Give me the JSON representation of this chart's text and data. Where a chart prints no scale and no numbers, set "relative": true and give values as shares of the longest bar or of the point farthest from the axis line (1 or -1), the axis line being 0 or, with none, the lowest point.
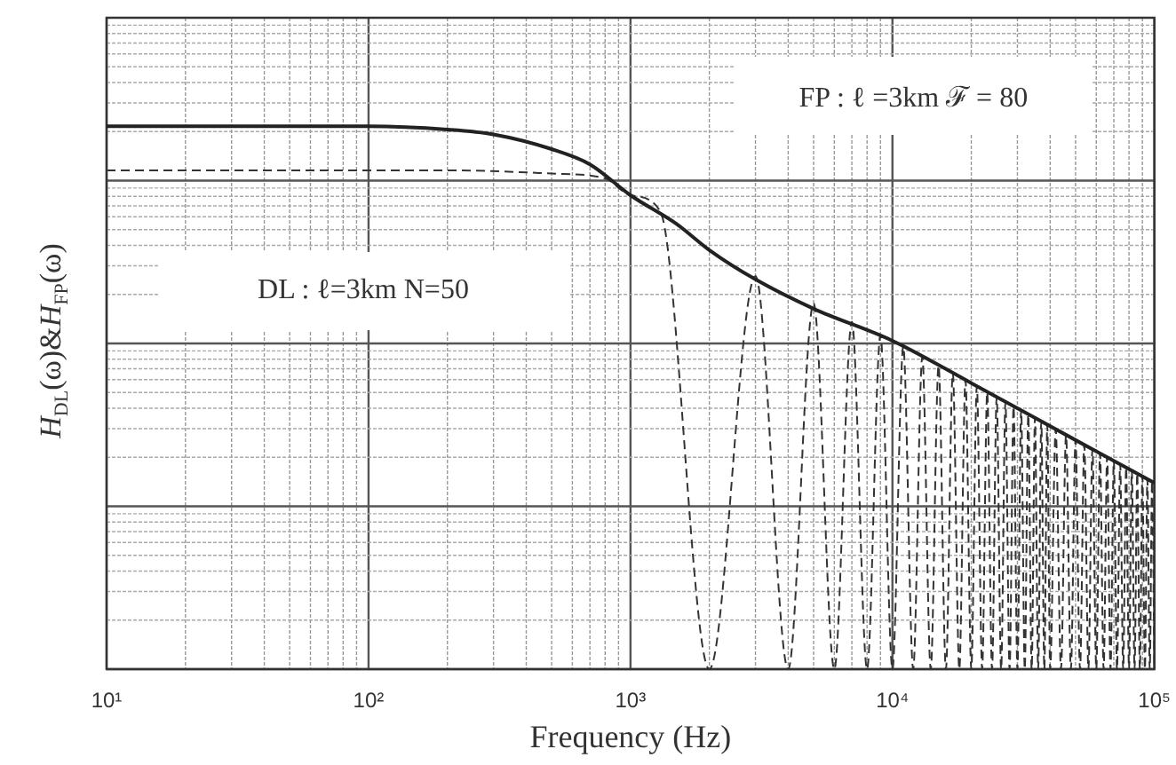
{
  "chart_data": {
    "type": "line",
    "xlabel": "Frequency (Hz)",
    "ylabel": "H$_{DL}$(ω)&H$_{FP}$(ω)",
    "log": "x",
    "relative": true,
    "grid": true,
    "legend": false,
    "marker": "none",
    "xlim": [
      10,
      100000
    ],
    "xticks": [
      {
        "value": 10,
        "label": "10¹"
      },
      {
        "value": 100,
        "label": "10²"
      },
      {
        "value": 1000,
        "label": "10³"
      },
      {
        "value": 10000,
        "label": "10⁴"
      },
      {
        "value": 100000,
        "label": "10⁵"
      }
    ],
    "annotations": [
      "FP : ℓ =3km ℱ = 80",
      "DL : ℓ=3km N=50"
    ],
    "series": [
      {
        "color": "#222222",
        "line_style": "solid",
        "x": [
          10,
          100,
          200,
          300,
          500,
          700,
          1000,
          1500,
          2000,
          3000,
          5000,
          10000,
          20000,
          50000,
          100000
        ],
        "values": [
          1.0,
          1.0,
          0.994,
          0.985,
          0.958,
          0.93,
          0.873,
          0.82,
          0.772,
          0.718,
          0.664,
          0.605,
          0.527,
          0.422,
          0.343
        ]
      },
      {
        "color": "#333333",
        "line_style": "dashed",
        "x": [
          10,
          200,
          500,
          800,
          1000,
          1300,
          2000,
          3000,
          4000,
          5000,
          6000,
          7000,
          8000,
          9000,
          10000,
          11000,
          12000,
          13000,
          14000,
          15000,
          16000,
          17000,
          18000,
          19000,
          20000,
          21000,
          22000,
          23000,
          24000,
          25000,
          26000,
          27000,
          28000,
          29000,
          30000,
          31000,
          32000,
          33000,
          34000,
          35000,
          36000,
          37000,
          38000,
          39000,
          40000,
          42000,
          44000,
          46000,
          48000,
          50000,
          52000,
          54000,
          56000,
          58000,
          60000,
          62000,
          64000,
          66000,
          68000,
          70000,
          72000,
          74000,
          76000,
          78000,
          80000,
          82000,
          84000,
          86000,
          88000,
          90000,
          92000,
          94000,
          96000,
          98000,
          100000
        ],
        "values": [
          0.919,
          0.919,
          0.913,
          0.904,
          0.873,
          0.843,
          0,
          0.724,
          0,
          0.674,
          0,
          0.64,
          0,
          0.615,
          0,
          0.594,
          0,
          0.575,
          0,
          0.559,
          0,
          0.545,
          0,
          0.532,
          0,
          0.521,
          0,
          0.51,
          0,
          0.501,
          0,
          0.492,
          0,
          0.484,
          0,
          0.477,
          0,
          0.469,
          0,
          0.463,
          0,
          0.456,
          0,
          0.45,
          0,
          0.442,
          0,
          0.431,
          0,
          0.422,
          0,
          0.413,
          0,
          0.405,
          0,
          0.398,
          0,
          0.391,
          0,
          0.384,
          0,
          0.378,
          0,
          0.372,
          0,
          0.366,
          0,
          0.361,
          0,
          0.355,
          0,
          0.35,
          0,
          0.346,
          0
        ]
      }
    ]
  }
}
